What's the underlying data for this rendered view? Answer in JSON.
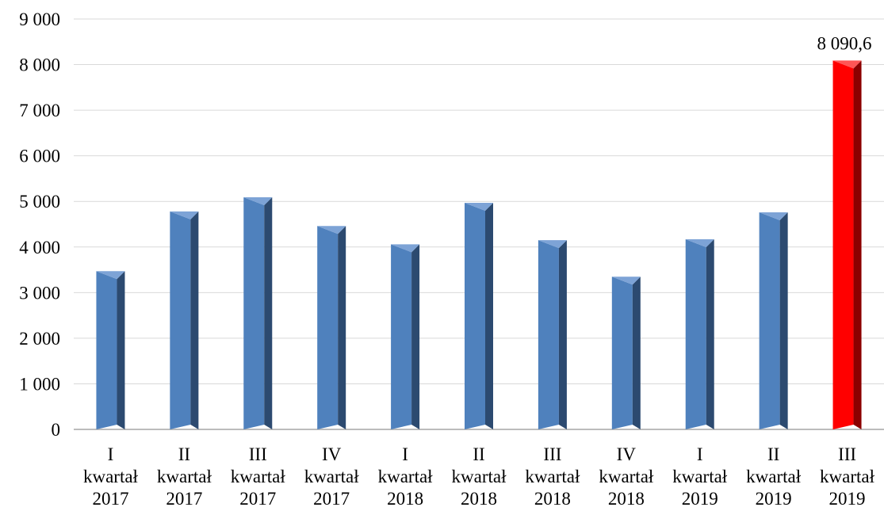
{
  "chart_data": {
    "type": "bar",
    "title": "",
    "xlabel": "",
    "ylabel": "",
    "ylim": [
      0,
      9000
    ],
    "ytick_step": 1000,
    "yticks": [
      "0",
      "1 000",
      "2 000",
      "3 000",
      "4 000",
      "5 000",
      "6 000",
      "7 000",
      "8 000",
      "9 000"
    ],
    "grid": true,
    "legend": "none",
    "categories": [
      [
        "I",
        "kwartał",
        "2017"
      ],
      [
        "II",
        "kwartał",
        "2017"
      ],
      [
        "III",
        "kwartał",
        "2017"
      ],
      [
        "IV",
        "kwartał",
        "2017"
      ],
      [
        "I",
        "kwartał",
        "2018"
      ],
      [
        "II",
        "kwartał",
        "2018"
      ],
      [
        "III",
        "kwartał",
        "2018"
      ],
      [
        "IV",
        "kwartał",
        "2018"
      ],
      [
        "I",
        "kwartał",
        "2019"
      ],
      [
        "II",
        "kwartał",
        "2019"
      ],
      [
        "III",
        "kwartał",
        "2019"
      ]
    ],
    "values": [
      3470,
      4780,
      5090,
      4460,
      4060,
      4970,
      4150,
      3350,
      4170,
      4760,
      8090.6
    ],
    "highlight_index": 10,
    "data_labels": [
      {
        "index": 10,
        "text": "8 090,6"
      }
    ],
    "colors": {
      "bar_front": "#4f81bd",
      "bar_side": "#2c4a70",
      "bar_top": "#7da3d6",
      "highlight_front": "#ff0000",
      "highlight_side": "#8b0000",
      "highlight_top": "#ff5555",
      "grid": "#d9d9d9",
      "axis": "#a6a6a6"
    }
  }
}
